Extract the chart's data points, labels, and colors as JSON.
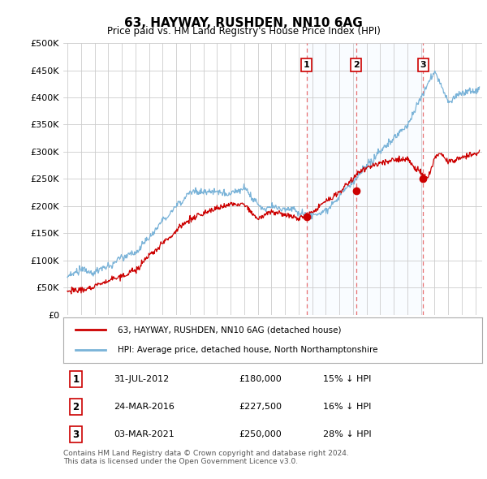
{
  "title": "63, HAYWAY, RUSHDEN, NN10 6AG",
  "subtitle": "Price paid vs. HM Land Registry's House Price Index (HPI)",
  "ytick_values": [
    0,
    50000,
    100000,
    150000,
    200000,
    250000,
    300000,
    350000,
    400000,
    450000,
    500000
  ],
  "ylim": [
    0,
    500000
  ],
  "xlim_start": 1994.7,
  "xlim_end": 2025.5,
  "legend_house": "63, HAYWAY, RUSHDEN, NN10 6AG (detached house)",
  "legend_hpi": "HPI: Average price, detached house, North Northamptonshire",
  "transactions": [
    {
      "label": "1",
      "date": "31-JUL-2012",
      "price": 180000,
      "pct": "15% ↓ HPI",
      "x": 2012.58
    },
    {
      "label": "2",
      "date": "24-MAR-2016",
      "price": 227500,
      "pct": "16% ↓ HPI",
      "x": 2016.22
    },
    {
      "label": "3",
      "date": "03-MAR-2021",
      "price": 250000,
      "pct": "28% ↓ HPI",
      "x": 2021.17
    }
  ],
  "footer": "Contains HM Land Registry data © Crown copyright and database right 2024.\nThis data is licensed under the Open Government Licence v3.0.",
  "hpi_color": "#7ab3d8",
  "house_color": "#cc0000",
  "vline_color": "#e87070",
  "dot_color": "#cc0000",
  "grid_color": "#cccccc",
  "background_color": "#ffffff",
  "label_box_color": "#ffffff",
  "label_box_edge": "#cc0000",
  "span_color": "#ddeeff"
}
